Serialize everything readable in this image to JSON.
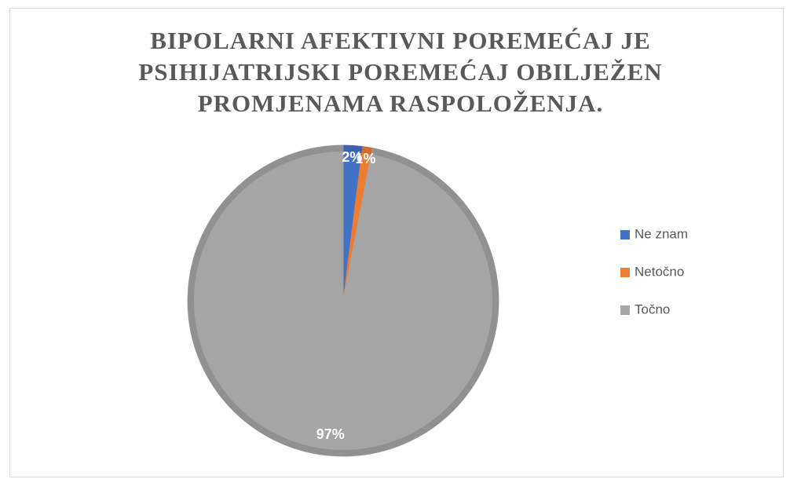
{
  "chart_data": {
    "type": "pie",
    "title": "BIPOLARNI AFEKTIVNI POREMEĆAJ JE PSIHIJATRIJSKI POREMEĆAJ OBILJEŽEN PROMJENAMA RASPOLOŽENJA.",
    "categories": [
      "Ne znam",
      "Netočno",
      "Točno"
    ],
    "values": [
      2,
      1,
      97
    ],
    "value_labels": [
      "2%",
      "1%",
      "97%"
    ],
    "colors": [
      "#4472c4",
      "#ed7d31",
      "#a5a5a5"
    ],
    "legend": "right"
  }
}
